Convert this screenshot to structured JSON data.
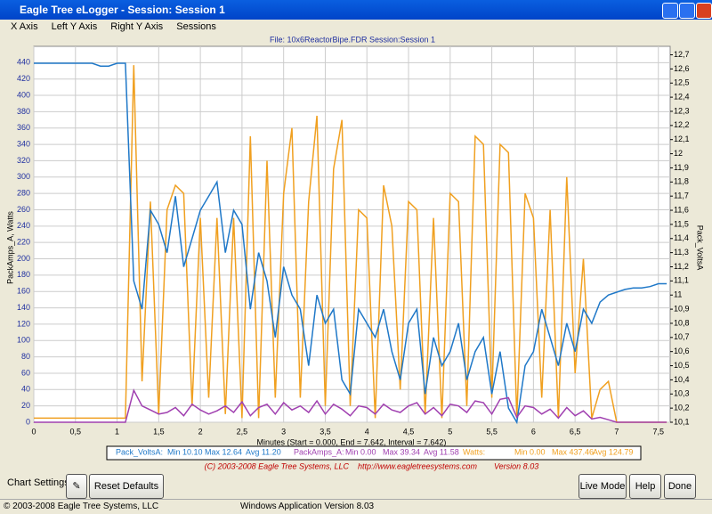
{
  "window": {
    "title": "Eagle Tree eLogger - Session: Session 1"
  },
  "menu": [
    "X Axis",
    "Left Y Axis",
    "Right Y Axis",
    "Sessions"
  ],
  "chart_data": {
    "type": "line",
    "title": "File: 10x6ReactorBipe.FDR   Session:Session 1",
    "ylabel": "PackAmps_A, Watts",
    "y2label": "Pack_VoltsA",
    "xlabel": "Minutes (Start = 0.000, End = 7.642, Interval = 7.642)",
    "xlim": [
      0,
      7.642
    ],
    "ylim": [
      0,
      460
    ],
    "y2lim": [
      10.1,
      12.76
    ],
    "grid": true,
    "xticks": [
      0,
      {
        "value": 0.5,
        "label": "0,5"
      },
      1,
      {
        "value": 1.5,
        "label": "1,5"
      },
      2,
      {
        "value": 2.5,
        "label": "2,5"
      },
      3,
      {
        "value": 3.5,
        "label": "3,5"
      },
      4,
      {
        "value": 4.5,
        "label": "4,5"
      },
      5,
      {
        "value": 5.5,
        "label": "5,5"
      },
      6,
      {
        "value": 6.5,
        "label": "6,5"
      },
      7,
      {
        "value": 7.5,
        "label": "7,5"
      }
    ],
    "yticks": [
      0,
      20,
      40,
      60,
      80,
      100,
      120,
      140,
      160,
      180,
      200,
      220,
      240,
      260,
      280,
      300,
      320,
      340,
      360,
      380,
      400,
      420,
      440
    ],
    "y2ticks": [
      {
        "value": 10.1,
        "label": "10,1"
      },
      {
        "value": 10.2,
        "label": "10,2"
      },
      {
        "value": 10.3,
        "label": "10,3"
      },
      {
        "value": 10.4,
        "label": "10,4"
      },
      {
        "value": 10.5,
        "label": "10,5"
      },
      {
        "value": 10.6,
        "label": "10,6"
      },
      {
        "value": 10.7,
        "label": "10,7"
      },
      {
        "value": 10.8,
        "label": "10,8"
      },
      {
        "value": 10.9,
        "label": "10,9"
      },
      11,
      {
        "value": 11.1,
        "label": "11,1"
      },
      {
        "value": 11.2,
        "label": "11,2"
      },
      {
        "value": 11.3,
        "label": "11,3"
      },
      {
        "value": 11.4,
        "label": "11,4"
      },
      {
        "value": 11.5,
        "label": "11,5"
      },
      {
        "value": 11.6,
        "label": "11,6"
      },
      {
        "value": 11.7,
        "label": "11,7"
      },
      {
        "value": 11.8,
        "label": "11,8"
      },
      {
        "value": 11.9,
        "label": "11,9"
      },
      12,
      {
        "value": 12.1,
        "label": "12,1"
      },
      {
        "value": 12.2,
        "label": "12,2"
      },
      {
        "value": 12.3,
        "label": "12,3"
      },
      {
        "value": 12.4,
        "label": "12,4"
      },
      {
        "value": 12.5,
        "label": "12,5"
      },
      {
        "value": 12.6,
        "label": "12,6"
      },
      {
        "value": 12.7,
        "label": "12,7"
      }
    ],
    "x": [
      0,
      0.1,
      0.2,
      0.3,
      0.4,
      0.5,
      0.6,
      0.7,
      0.8,
      0.9,
      1,
      1.1,
      1.2,
      1.3,
      1.4,
      1.5,
      1.6,
      1.7,
      1.8,
      1.9,
      2,
      2.1,
      2.2,
      2.3,
      2.4,
      2.5,
      2.6,
      2.7,
      2.8,
      2.9,
      3,
      3.1,
      3.2,
      3.3,
      3.4,
      3.5,
      3.6,
      3.7,
      3.8,
      3.9,
      4,
      4.1,
      4.2,
      4.3,
      4.4,
      4.5,
      4.6,
      4.7,
      4.8,
      4.9,
      5,
      5.1,
      5.2,
      5.3,
      5.4,
      5.5,
      5.6,
      5.7,
      5.8,
      5.9,
      6,
      6.1,
      6.2,
      6.3,
      6.4,
      6.5,
      6.6,
      6.7,
      6.8,
      6.9,
      7,
      7.1,
      7.2,
      7.3,
      7.4,
      7.5,
      7.6
    ],
    "series": [
      {
        "name": "Pack_VoltsA",
        "legend_label": "Pack_VoltsA:",
        "min": "Min 10.10",
        "max": "Max 12.64",
        "avg": "Avg 11.20",
        "color": "#1f78c8",
        "axis": "y2",
        "values": [
          12.64,
          12.64,
          12.64,
          12.64,
          12.64,
          12.64,
          12.64,
          12.64,
          12.62,
          12.62,
          12.64,
          12.64,
          11.1,
          10.9,
          11.6,
          11.5,
          11.3,
          11.7,
          11.2,
          11.4,
          11.6,
          11.7,
          11.8,
          11.3,
          11.6,
          11.5,
          10.9,
          11.3,
          11.1,
          10.7,
          11.2,
          11.0,
          10.9,
          10.5,
          11.0,
          10.8,
          10.9,
          10.4,
          10.3,
          10.9,
          10.8,
          10.7,
          10.9,
          10.6,
          10.4,
          10.8,
          10.9,
          10.3,
          10.7,
          10.5,
          10.6,
          10.8,
          10.4,
          10.6,
          10.7,
          10.3,
          10.6,
          10.2,
          10.1,
          10.5,
          10.6,
          10.9,
          10.7,
          10.5,
          10.8,
          10.6,
          10.9,
          10.8,
          10.95,
          11.0,
          11.02,
          11.04,
          11.05,
          11.05,
          11.06,
          11.08,
          11.08
        ]
      },
      {
        "name": "PackAmps_A",
        "legend_label": "PackAmps_A:",
        "min": "Min 0.00",
        "max": "Max 39.34",
        "avg": "Avg 11.58",
        "color": "#a040b0",
        "values": [
          0,
          0,
          0,
          0,
          0,
          0,
          0,
          0,
          0,
          0,
          0,
          0,
          39,
          20,
          15,
          10,
          12,
          18,
          8,
          22,
          15,
          10,
          14,
          20,
          12,
          25,
          8,
          18,
          22,
          10,
          24,
          15,
          20,
          12,
          26,
          10,
          22,
          16,
          8,
          20,
          18,
          10,
          22,
          15,
          12,
          20,
          24,
          10,
          18,
          8,
          22,
          20,
          12,
          26,
          24,
          10,
          28,
          30,
          6,
          20,
          18,
          10,
          16,
          5,
          18,
          8,
          14,
          4,
          6,
          3,
          0,
          0,
          0,
          0,
          0,
          0,
          0
        ]
      },
      {
        "name": "Watts",
        "legend_label": "Watts:",
        "min": "Min 0.00",
        "max": "Max 437.46",
        "avg": "Avg 124.79",
        "color": "#f0a020",
        "values": [
          5,
          5,
          5,
          5,
          5,
          5,
          5,
          5,
          5,
          5,
          5,
          5,
          437,
          50,
          270,
          10,
          260,
          290,
          280,
          20,
          250,
          30,
          250,
          10,
          250,
          5,
          350,
          5,
          320,
          30,
          280,
          360,
          30,
          270,
          375,
          20,
          310,
          370,
          20,
          260,
          250,
          5,
          290,
          240,
          40,
          270,
          260,
          10,
          250,
          5,
          280,
          270,
          20,
          350,
          340,
          30,
          340,
          330,
          5,
          280,
          250,
          30,
          260,
          5,
          300,
          60,
          200,
          5,
          40,
          50,
          0,
          0,
          0,
          0,
          0,
          0,
          0
        ]
      }
    ]
  },
  "footer": {
    "copyright": "(C) 2003-2008 Eagle Tree Systems, LLC",
    "url": "http://www.eagletreesystems.com",
    "version": "Version 8.03"
  },
  "controls": {
    "settings_label": "Chart Settings:",
    "reset": "Reset Defaults",
    "live": "Live Mode",
    "help": "Help",
    "done": "Done"
  },
  "status": {
    "left": "© 2003-2008 Eagle Tree Systems, LLC",
    "right": "Windows Application Version 8.03"
  }
}
